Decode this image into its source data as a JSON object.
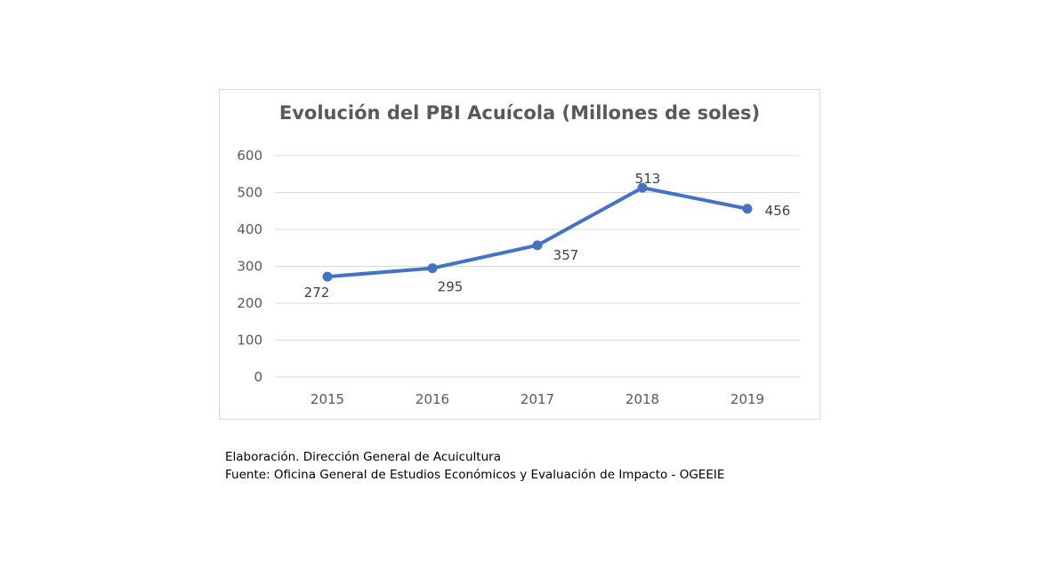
{
  "chart_data": {
    "type": "line",
    "title": "Evolución del PBI Acuícola (Millones de soles)",
    "categories": [
      "2015",
      "2016",
      "2017",
      "2018",
      "2019"
    ],
    "series": [
      {
        "values": [
          272,
          295,
          357,
          513,
          456
        ]
      }
    ],
    "data_labels": [
      "272",
      "295",
      "357",
      "513",
      "456"
    ],
    "y_ticks": [
      "0",
      "100",
      "200",
      "300",
      "400",
      "500",
      "600"
    ],
    "ylim": [
      0,
      600
    ],
    "grid": true,
    "legend": "none",
    "colors": {
      "line": "#4472c4",
      "grid": "#d9d9d9"
    }
  },
  "notes": {
    "elaboracion": "Elaboración. Dirección General de Acuicultura",
    "fuente": "Fuente: Oficina General de Estudios Económicos y Evaluación de Impacto - OGEEIE"
  }
}
